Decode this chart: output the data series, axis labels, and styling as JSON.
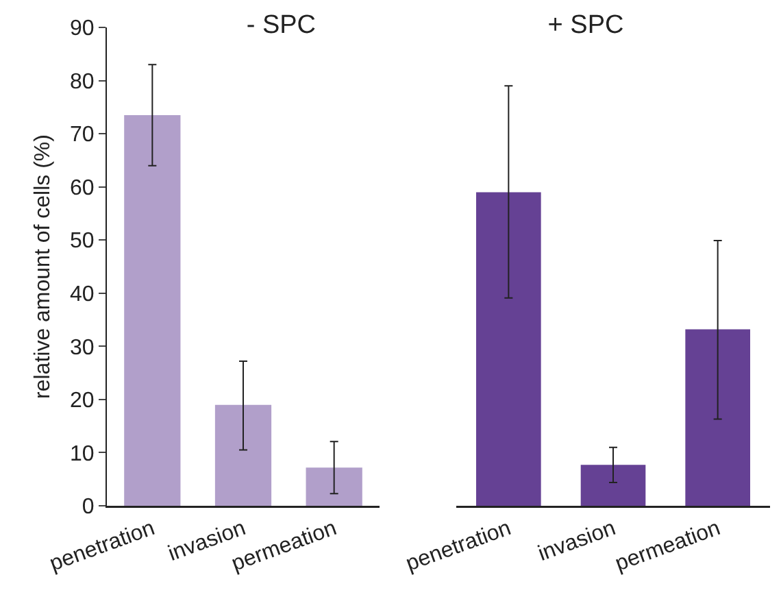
{
  "chart_data": [
    {
      "type": "bar",
      "title": "- SPC",
      "ylabel": "relative amount of cells (%)",
      "categories": [
        "penetration",
        "invasion",
        "permeation"
      ],
      "color": "#b19fca",
      "values": [
        73.5,
        19.0,
        7.2
      ],
      "errors": [
        [
          64.0,
          83.0
        ],
        [
          10.5,
          27.2
        ],
        [
          2.3,
          12.1
        ]
      ],
      "ylim": [
        0,
        90
      ],
      "yticks": [
        0,
        10,
        20,
        30,
        40,
        50,
        60,
        70,
        80,
        90
      ]
    },
    {
      "type": "bar",
      "title": "+ SPC",
      "categories": [
        "penetration",
        "invasion",
        "permeation"
      ],
      "color": "#654194",
      "values": [
        59.0,
        7.7,
        33.2
      ],
      "errors": [
        [
          39.1,
          79.0
        ],
        [
          4.4,
          11.0
        ],
        [
          16.3,
          49.9
        ]
      ],
      "ylim": [
        0,
        90
      ],
      "yticks": [
        0,
        10,
        20,
        30,
        40,
        50,
        60,
        70,
        80,
        90
      ],
      "tick_labels": "x"
    }
  ]
}
